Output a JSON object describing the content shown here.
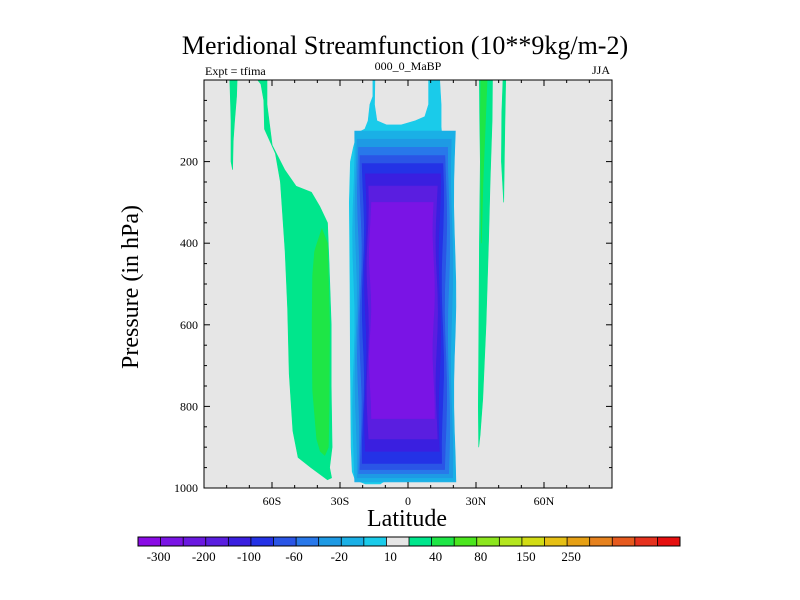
{
  "chart_data": {
    "type": "heatmap",
    "title": "Meridional Streamfunction (10**9kg/m-2)",
    "subtitle_left": "Expt = tfima",
    "subtitle_center": "000_0_MaBP",
    "subtitle_right": "JJA",
    "xlabel": "Latitude",
    "ylabel": "Pressure (in hPa)",
    "xlim": [
      -90,
      90
    ],
    "ylim": [
      0,
      1000
    ],
    "x_ticks": [
      {
        "value": -60,
        "label": "60S"
      },
      {
        "value": -30,
        "label": "30S"
      },
      {
        "value": 0,
        "label": "0"
      },
      {
        "value": 30,
        "label": "30N"
      },
      {
        "value": 60,
        "label": "60N"
      }
    ],
    "y_ticks": [
      {
        "value": 200,
        "label": "200"
      },
      {
        "value": 400,
        "label": "400"
      },
      {
        "value": 600,
        "label": "600"
      },
      {
        "value": 800,
        "label": "800"
      },
      {
        "value": 1000,
        "label": "1000"
      }
    ],
    "colorbar": {
      "colors": [
        "#8a0be5",
        "#7a14e5",
        "#6a18e0",
        "#5a1ee0",
        "#3a1fe0",
        "#2432e6",
        "#2a55e6",
        "#2878ea",
        "#1e9ae4",
        "#1ab0e6",
        "#1acbea",
        "#e6e6e6",
        "#00e68c",
        "#1ee646",
        "#4be61e",
        "#8ce61e",
        "#b4e61e",
        "#d2dc14",
        "#e6c014",
        "#e6a014",
        "#e6821e",
        "#e65a1e",
        "#e6321e",
        "#e60f0f"
      ],
      "tick_labels": [
        "-300",
        "-200",
        "-100",
        "-60",
        "-20",
        "10",
        "40",
        "80",
        "150",
        "250"
      ],
      "tick_label_positions": [
        1,
        3,
        5,
        7,
        9,
        11,
        13,
        15,
        17,
        19
      ]
    },
    "regions": [
      {
        "name": "nh-midlat-cell",
        "level": 10,
        "color": "#00e68c",
        "lat_outer": [
          [
            -66.3,
            0
          ],
          [
            -62.2,
            0
          ],
          [
            -62.2,
            60
          ],
          [
            -59.9,
            160
          ],
          [
            -54.4,
            220
          ],
          [
            -49.4,
            260
          ],
          [
            -42.6,
            275
          ],
          [
            -38.9,
            310
          ],
          [
            -35.5,
            350
          ],
          [
            -34.8,
            450
          ],
          [
            -33.9,
            600
          ],
          [
            -33.9,
            750
          ],
          [
            -33.5,
            900
          ],
          [
            -34.6,
            950
          ],
          [
            -33.7,
            975
          ],
          [
            -35.5,
            980
          ],
          [
            -42.8,
            950
          ],
          [
            -48.5,
            925
          ],
          [
            -50.8,
            860
          ],
          [
            -52.4,
            720
          ],
          [
            -53.1,
            560
          ],
          [
            -54.2,
            420
          ],
          [
            -56.3,
            250
          ],
          [
            -58.5,
            180
          ],
          [
            -63.3,
            120
          ],
          [
            -63.6,
            50
          ],
          [
            -64.9,
            10
          ]
        ]
      },
      {
        "name": "sh-small-cell",
        "level": 10,
        "color": "#00e68c",
        "lat_outer": [
          [
            -78.6,
            0
          ],
          [
            -75.4,
            0
          ],
          [
            -75.6,
            40
          ],
          [
            -76.5,
            100
          ],
          [
            -77.1,
            150
          ],
          [
            -77.4,
            220
          ],
          [
            -78.1,
            200
          ],
          [
            -78.1,
            100
          ],
          [
            -78.4,
            40
          ]
        ]
      },
      {
        "name": "inner-midlat-cell",
        "level": 40,
        "color": "#1ee646",
        "lat_outer": [
          [
            -40.1,
            400
          ],
          [
            -38.0,
            365
          ],
          [
            -35.5,
            400
          ],
          [
            -34.6,
            600
          ],
          [
            -34.8,
            800
          ],
          [
            -35.1,
            900
          ],
          [
            -36.7,
            920
          ],
          [
            -38.7,
            910
          ],
          [
            -40.3,
            880
          ],
          [
            -42.1,
            760
          ],
          [
            -42.3,
            600
          ],
          [
            -42.1,
            480
          ],
          [
            -41.2,
            420
          ]
        ]
      },
      {
        "name": "nh-narrow-strip",
        "level": 10,
        "color": "#00e68c",
        "lat_outer": [
          [
            31.5,
            0
          ],
          [
            37.3,
            0
          ],
          [
            37.1,
            100
          ],
          [
            36.2,
            250
          ],
          [
            35.5,
            400
          ],
          [
            34.4,
            600
          ],
          [
            33.0,
            780
          ],
          [
            31.8,
            870
          ],
          [
            31.2,
            900
          ],
          [
            31.0,
            800
          ],
          [
            31.3,
            600
          ],
          [
            31.5,
            400
          ],
          [
            31.9,
            200
          ],
          [
            31.6,
            80
          ]
        ]
      },
      {
        "name": "nh-thin-strip",
        "level": 10,
        "color": "#00e68c",
        "lat_outer": [
          [
            41.9,
            0
          ],
          [
            43.1,
            0
          ],
          [
            42.7,
            120
          ],
          [
            42.2,
            300
          ],
          [
            41.2,
            200
          ],
          [
            41.4,
            80
          ]
        ]
      },
      {
        "name": "nh-inner-strip",
        "level": 40,
        "color": "#1ee646",
        "lat_outer": [
          [
            32.1,
            0
          ],
          [
            34.9,
            0
          ],
          [
            34.2,
            100
          ],
          [
            33.1,
            250
          ],
          [
            32.4,
            400
          ],
          [
            32.1,
            250
          ],
          [
            31.9,
            100
          ]
        ]
      },
      {
        "name": "hadley-cell",
        "levels": [
          -10,
          -20,
          -40,
          -60,
          -80,
          -100,
          -150,
          -200,
          -250
        ],
        "colors": [
          "#1acbea",
          "#1ab0e6",
          "#1e9ae4",
          "#2878ea",
          "#2a55e6",
          "#2432e6",
          "#3a1fe0",
          "#5a1ee0",
          "#7a14e5"
        ]
      }
    ]
  }
}
